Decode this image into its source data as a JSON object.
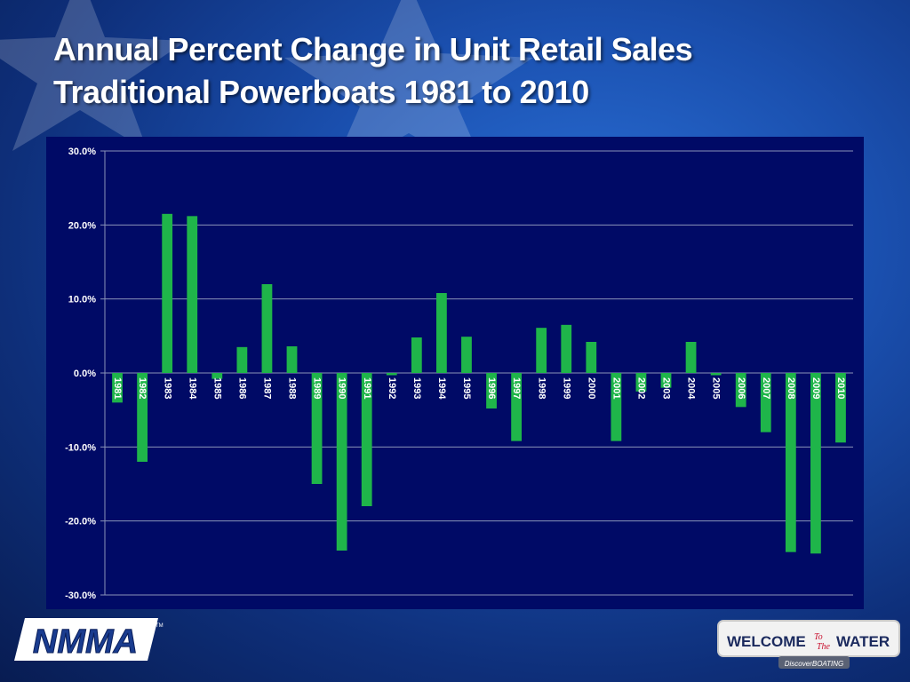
{
  "title": {
    "line1": "Annual Percent Change in Unit Retail Sales",
    "line2": "Traditional Powerboats 1981 to 2010"
  },
  "logos": {
    "left": {
      "text": "NMMA",
      "tm": "TM"
    },
    "right": {
      "text_a": "WELCOME",
      "text_b": "To",
      "text_c": "The",
      "text_d": "WATER",
      "tagline": "DiscoverBOATING"
    }
  },
  "colors": {
    "background": "#1a4fae",
    "plot_area": "#000a66",
    "bar": "#1fb54a",
    "gridline": "#8a93b8",
    "text": "#ffffff"
  },
  "chart_data": {
    "type": "bar",
    "title": "Annual Percent Change in Unit Retail Sales Traditional Powerboats 1981 to 2010",
    "xlabel": "",
    "ylabel": "",
    "ylim": [
      -30,
      30
    ],
    "yticks": [
      "30.0%",
      "20.0%",
      "10.0%",
      "0.0%",
      "-10.0%",
      "-20.0%",
      "-30.0%"
    ],
    "ytick_values": [
      30,
      20,
      10,
      0,
      -10,
      -20,
      -30
    ],
    "grid": true,
    "categories": [
      "1981",
      "1982",
      "1983",
      "1984",
      "1985",
      "1986",
      "1987",
      "1988",
      "1989",
      "1990",
      "1991",
      "1992",
      "1993",
      "1994",
      "1995",
      "1996",
      "1997",
      "1998",
      "1999",
      "2000",
      "2001",
      "2002",
      "2003",
      "2004",
      "2005",
      "2006",
      "2007",
      "2008",
      "2009",
      "2010"
    ],
    "values": [
      -4.0,
      -12.0,
      21.5,
      21.2,
      -0.8,
      3.5,
      12.0,
      3.6,
      -15.0,
      -24.0,
      -18.0,
      -0.3,
      4.8,
      10.8,
      4.9,
      -4.8,
      -9.2,
      6.1,
      6.5,
      4.2,
      -9.2,
      -2.5,
      -2.0,
      4.2,
      -0.3,
      -4.6,
      -8.0,
      -24.2,
      -24.4,
      -9.4
    ]
  }
}
